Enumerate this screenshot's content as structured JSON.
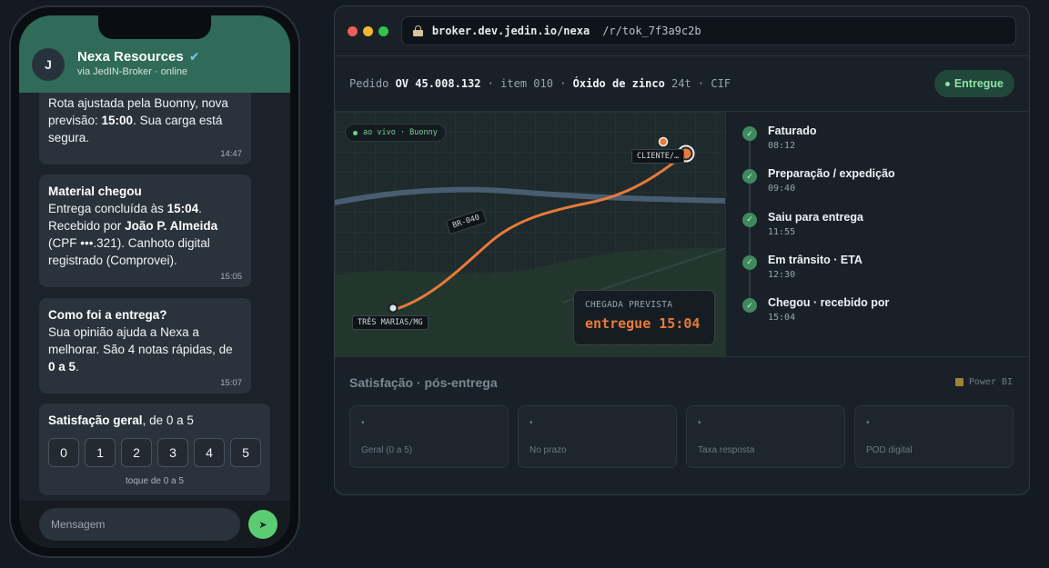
{
  "phone": {
    "contact": {
      "initial": "J",
      "name": "Nexa Resources",
      "verified_icon": "✔",
      "subtitle": "via JedIN-Broker · online"
    },
    "messages": [
      {
        "parts": [
          "Rota ajustada pela Buonny, nova previsão: ",
          "15:00",
          ". Sua carga está segura."
        ],
        "time": "14:47"
      },
      {
        "title": "Material chegou",
        "parts": [
          "Entrega concluída às ",
          "15:04",
          ". Recebido por ",
          "João P. Almeida",
          " (CPF •••.321). Canhoto digital registrado (Comprovei)."
        ],
        "time": "15:05"
      },
      {
        "title": "Como foi a entrega?",
        "parts": [
          "Sua opinião ajuda a Nexa a melhorar. São 4 notas rápidas, de ",
          "0 a 5",
          "."
        ],
        "time": "15:07"
      }
    ],
    "rating": {
      "title_bold": "Satisfação geral",
      "title_rest": ", de 0 a 5",
      "options": [
        "0",
        "1",
        "2",
        "3",
        "4",
        "5"
      ],
      "hint": "toque de 0 a 5"
    },
    "composer": {
      "placeholder": "Mensagem",
      "send_icon": "➤"
    }
  },
  "browser": {
    "url": {
      "host": "broker.dev.jedin.io/nexa",
      "path": "/r/tok_7f3a9c2b"
    },
    "order": {
      "prefix": "Pedido ",
      "order_no": "OV 45.008.132",
      "sep1": " · item 010 · ",
      "product": "Óxido de zinco",
      "rest": " 24t · CIF",
      "status": "Entregue"
    },
    "map": {
      "live": "ao vivo · Buonny",
      "origin": "TRÊS MARIAS/MG",
      "destination": "CLIENTE/…",
      "road": "BR-040",
      "eta_title": "CHEGADA PREVISTA",
      "eta_value": "entregue 15:04"
    },
    "timeline": [
      {
        "label": "Faturado",
        "time": "08:12"
      },
      {
        "label": "Preparação / expedição",
        "time": "09:40"
      },
      {
        "label": "Saiu para entrega",
        "time": "11:55"
      },
      {
        "label": "Em trânsito · ETA",
        "time": "12:30"
      },
      {
        "label": "Chegou · recebido por",
        "time": "15:04"
      }
    ],
    "satisfaction": {
      "title": "Satisfação · pós-entrega",
      "source": "Power BI",
      "kpis": [
        {
          "value": "•",
          "label": "Geral (0 a 5)"
        },
        {
          "value": "•",
          "label": "No prazo"
        },
        {
          "value": "•",
          "label": "Taxa resposta"
        },
        {
          "value": "•",
          "label": "POD digital"
        }
      ]
    }
  },
  "colors": {
    "accent": "#e87a3a",
    "header_green": "#2f6b58",
    "success": "#5ccc72"
  }
}
